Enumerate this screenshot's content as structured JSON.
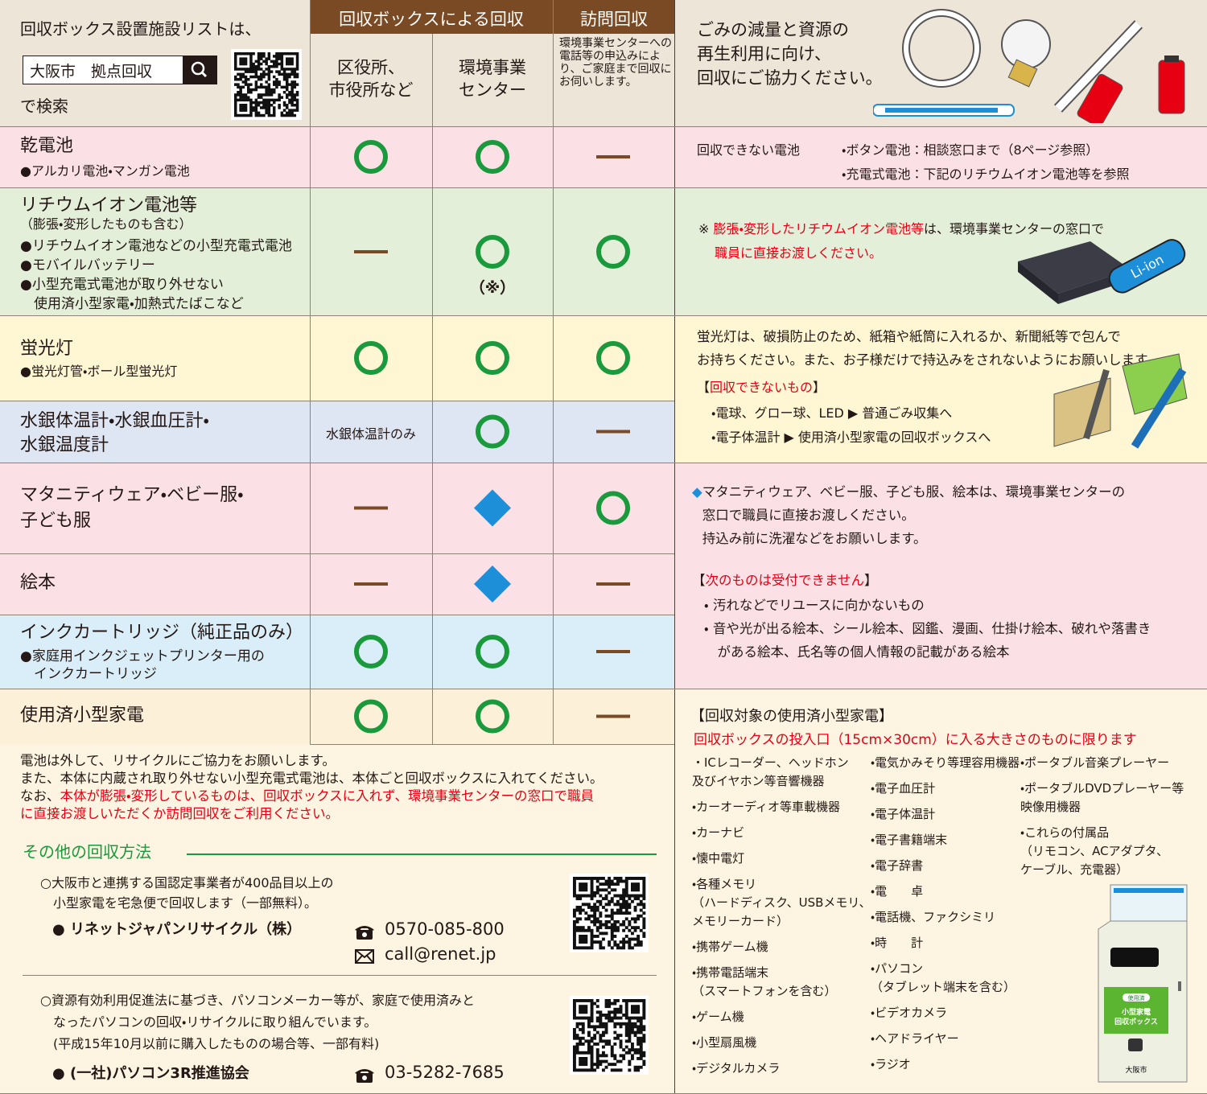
{
  "header": {
    "search_intro": "回収ボックス設置施設リストは、",
    "search_box": "大阪市　拠点回収",
    "search_suffix": "で検索",
    "group_box": "回収ボックスによる回収",
    "group_visit": "訪問回収",
    "col_ward": "区役所、\n市役所など",
    "col_center": "環境事業\nセンター",
    "col_visit": "環境事業センターへの電話等の申込みにより、ご家庭まで回収にお伺いします。",
    "banner": "ごみの減量と資源の\n再生利用に向け、\n回収にご協力ください。"
  },
  "rows": [
    {
      "name": "乾電池",
      "detail": "●アルカリ電池・マンガン電池"
    },
    {
      "name": "リチウムイオン電池等",
      "sub": "（膨張・変形したものも含む）",
      "detail": "●リチウムイオン電池などの小型充電式電池\n●モバイルバッテリー\n●小型充電式電池が取り外せない\n　使用済小型家電・加熱式たばこなど",
      "note": "（※）"
    },
    {
      "name": "蛍光灯",
      "detail": "●蛍光灯管・ボール型蛍光灯"
    },
    {
      "name": "水銀体温計・水銀血圧計・\n水銀温度計",
      "ward": "水銀体温計のみ"
    },
    {
      "name": "マタニティウェア・ベビー服・\n子ども服"
    },
    {
      "name": "絵本"
    },
    {
      "name": "インクカートリッジ（純正品のみ）",
      "detail": "●家庭用インクジェットプリンター用の\n　インクカートリッジ"
    },
    {
      "name": "使用済小型家電"
    }
  ],
  "notes": {
    "battery": {
      "label": "回収できない電池",
      "lines": [
        "・ボタン電池：相談窓口まで（8ページ参照）",
        "・充電式電池：下記のリチウムイオン電池等を参照"
      ]
    },
    "lithium": {
      "mark": "※ ",
      "red1": "膨張・変形したリチウムイオン電池等",
      "text1": "は、環境事業センターの窓口で",
      "red2": "職員に直接お渡しください。",
      "illustration": "Li-ion"
    },
    "fluorescent": {
      "text": "蛍光灯は、破損防止のため、紙箱や紙筒に入れるか、新聞紙等で包んで\nお持ちください。また、お子様だけで持込みをされないようにお願いします。",
      "open": "【",
      "heading": "回収できないもの",
      "close": "】",
      "items": [
        "・電球、グロー球、LED ▶ 普通ごみ収集へ",
        "・電子体温計 ▶ 使用済小型家電の回収ボックスへ"
      ]
    },
    "clothing": {
      "mark": "◆",
      "text": "マタニティウェア、ベビー服、子ども服、絵本は、環境事業センターの\n窓口で職員に直接お渡しください。\n持込み前に洗濯などをお願いします。",
      "open": "【",
      "heading": "次のものは受付できません",
      "close": "】",
      "items": [
        "・ 汚れなどでリユースに向かないもの",
        "・ 音や光が出る絵本、シール絵本、図鑑、漫画、仕掛け絵本、破れや落書き\n　がある絵本、氏名等の個人情報の記載がある絵本"
      ]
    }
  },
  "appliances": {
    "heading": "【回収対象の使用済小型家電】",
    "limit": "回収ボックスの投入口（15cm×30cm）に入る大きさのものに限ります",
    "col1": [
      "・ICレコーダー、ヘッドホン\n 及びイヤホン等音響機器",
      "・カーオーディオ等車載機器",
      "・カーナビ",
      "・懐中電灯",
      "・各種メモリ\n（ハードディスク、USBメモリ、\nメモリーカード）",
      "・携帯ゲーム機",
      "・携帯電話端末\n（スマートフォンを含む）",
      "・ゲーム機",
      "・小型扇風機",
      "・デジタルカメラ"
    ],
    "col2": [
      "・電気かみそり等理容用機器",
      "・電子血圧計",
      "・電子体温計",
      "・電子書籍端末",
      "・電子辞書",
      "・電　　卓",
      "・電話機、ファクシミリ",
      "・時　　計",
      "・パソコン\n（タブレット端末を含む）",
      "・ビデオカメラ",
      "・ヘアドライヤー",
      "・ラジオ"
    ],
    "col3": [
      "・ポータブル音楽プレーヤー",
      "・ポータブルDVDプレーヤー等\n 映像用機器",
      "・これらの付属品\n（リモコン、ACアダプタ、\nケーブル、充電器）"
    ],
    "box_tag": "使用済",
    "box_label": "小型家電\n回収ボックス",
    "box_city": "大阪市"
  },
  "footer": {
    "text": "電池は外して、リサイクルにご協力をお願いします。\nまた、本体に内蔵され取り外せない小型充電式電池は、本体ごと回収ボックスに入れてください。\nなお、",
    "red": "本体が膨張・変形しているものは、回収ボックスに入れず、環境事業センターの窓口で職員\nに直接お渡しいただくか訪問回収をご利用ください。"
  },
  "other": {
    "heading": "その他の回収方法",
    "renet": {
      "desc": "○大阪市と連携する国認定事業者が400品目以上の\n　小型家電を宅急便で回収します（一部無料）。",
      "name": "● リネットジャパンリサイクル（株）",
      "tel": "0570-085-800",
      "mail": "call@renet.jp"
    },
    "pc": {
      "desc": "○資源有効利用促進法に基づき、パソコンメーカー等が、家庭で使用済みと\n　なったパソコンの回収・リサイクルに取り組んでいます。\n　(平成15年10月以前に購入したものの場合等、一部有料)",
      "name": "● (一社)パソコン3R推進協会",
      "tel": "03-5282-7685"
    }
  }
}
